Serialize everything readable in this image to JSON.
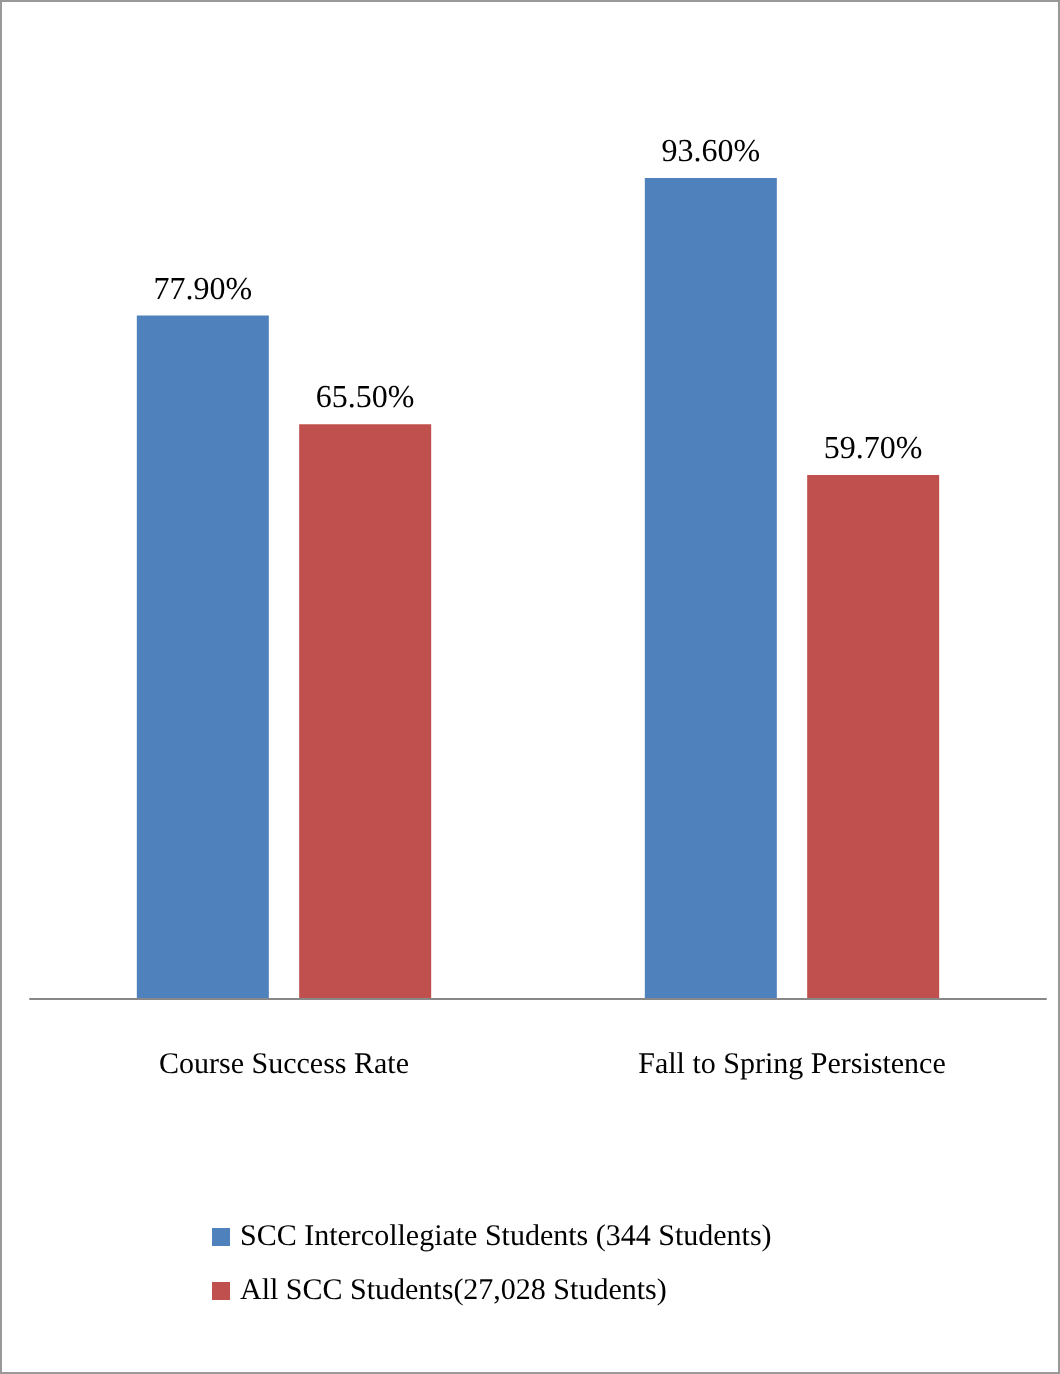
{
  "chart_data": {
    "type": "bar",
    "categories": [
      "Course Success Rate",
      "Fall to Spring Persistence"
    ],
    "series": [
      {
        "name": "SCC Intercollegiate Students (344 Students)",
        "color": "#4f81bd",
        "values": [
          77.9,
          93.6
        ],
        "value_labels": [
          "77.90%",
          "93.60%"
        ]
      },
      {
        "name": "All SCC Students(27,028 Students)",
        "color": "#c0504d",
        "values": [
          65.5,
          59.7
        ],
        "value_labels": [
          "65.50%",
          "59.70%"
        ]
      }
    ],
    "legend": "bottom"
  }
}
